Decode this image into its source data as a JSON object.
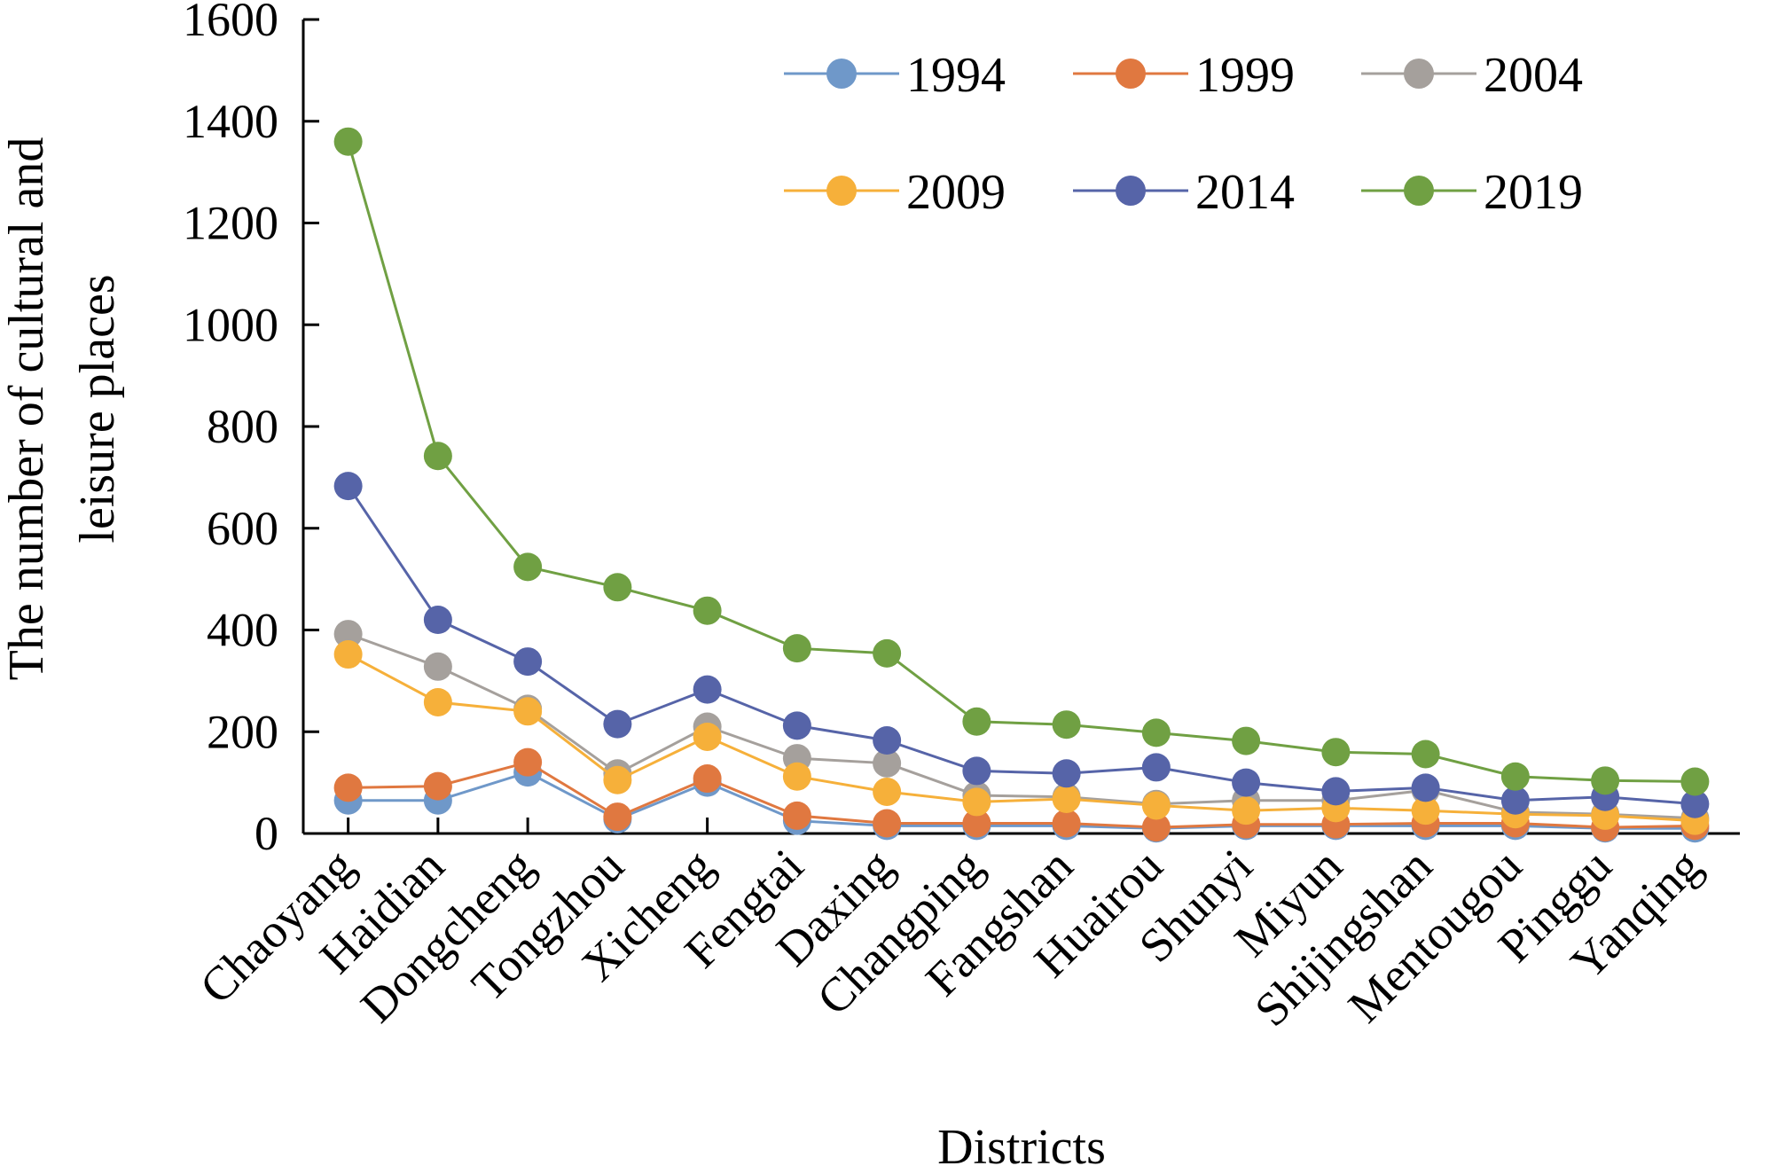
{
  "chart_data": {
    "type": "line",
    "title": "",
    "xlabel": "Districts",
    "ylabel": "The number of cultural and leisure places",
    "ylabel_lines": [
      "The number of cultural and",
      "leisure places"
    ],
    "ylim": [
      0,
      1600
    ],
    "yticks": [
      0,
      200,
      400,
      600,
      800,
      1000,
      1200,
      1400,
      1600
    ],
    "grid": false,
    "legend_position": "top-right",
    "categories": [
      "Chaoyang",
      "Haidian",
      "Dongcheng",
      "Tongzhou",
      "Xicheng",
      "Fengtai",
      "Daxing",
      "Changping",
      "Fangshan",
      "Huairou",
      "Shunyi",
      "Miyun",
      "Shijingshan",
      "Mentougou",
      "Pinggu",
      "Yanqing"
    ],
    "series": [
      {
        "name": "1994",
        "color": "#6f98c9",
        "values": [
          65,
          65,
          120,
          28,
          100,
          25,
          15,
          15,
          15,
          10,
          15,
          15,
          15,
          15,
          10,
          10
        ]
      },
      {
        "name": "1999",
        "color": "#e07840",
        "values": [
          90,
          93,
          140,
          33,
          108,
          35,
          20,
          20,
          20,
          12,
          18,
          18,
          20,
          20,
          12,
          15
        ]
      },
      {
        "name": "2004",
        "color": "#a5a09c",
        "values": [
          392,
          328,
          245,
          118,
          210,
          148,
          138,
          75,
          72,
          58,
          65,
          65,
          85,
          42,
          38,
          30
        ]
      },
      {
        "name": "2009",
        "color": "#f6b03a",
        "values": [
          352,
          258,
          240,
          105,
          190,
          112,
          82,
          62,
          68,
          55,
          45,
          50,
          45,
          38,
          35,
          25
        ]
      },
      {
        "name": "2014",
        "color": "#5664a8",
        "values": [
          683,
          420,
          338,
          215,
          283,
          212,
          183,
          123,
          118,
          130,
          100,
          83,
          90,
          65,
          72,
          58
        ]
      },
      {
        "name": "2019",
        "color": "#70a043",
        "values": [
          1360,
          742,
          524,
          484,
          438,
          364,
          354,
          220,
          214,
          198,
          182,
          160,
          156,
          112,
          104,
          102
        ]
      }
    ]
  }
}
